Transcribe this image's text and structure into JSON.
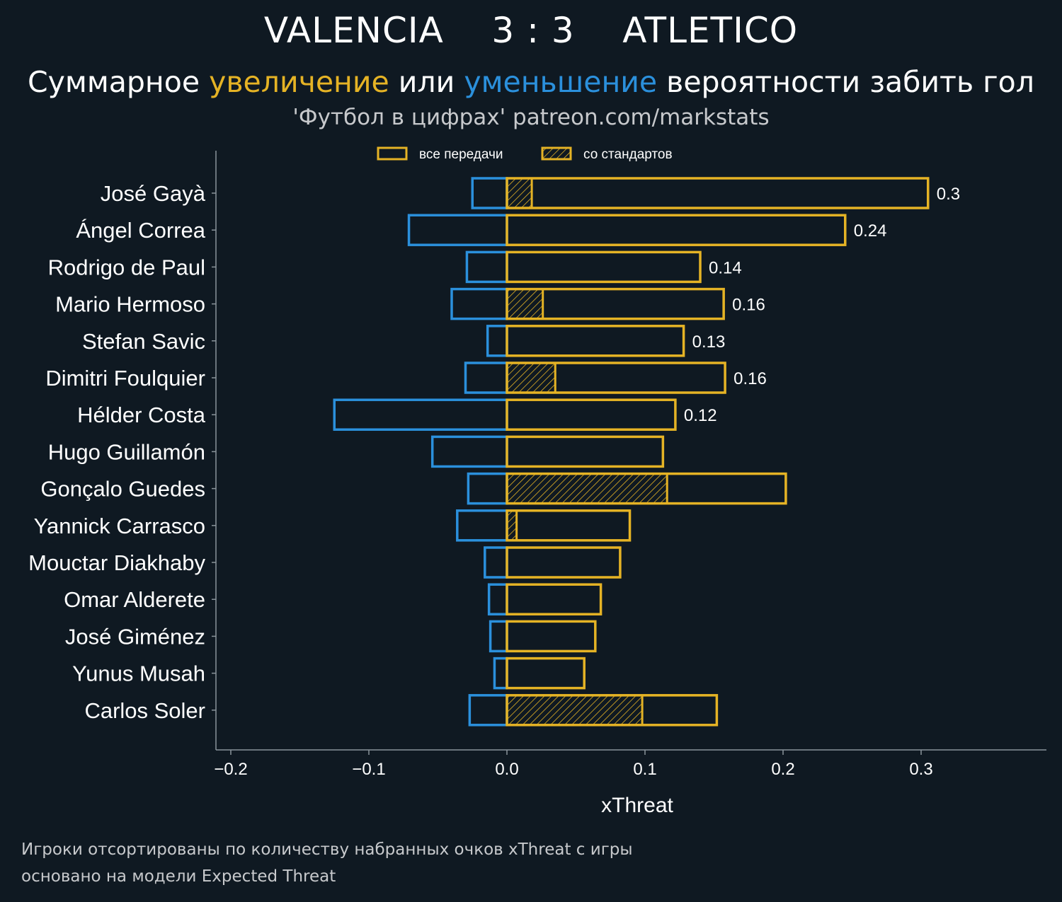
{
  "header": {
    "title": "VALENCIA    3 : 3    ATLETICO",
    "subtitle_parts": [
      "Суммарное ",
      "увеличение",
      " или ",
      "уменьшение",
      " вероятности забить гол"
    ],
    "credit": "'Футбол в цифрах' patreon.com/markstats"
  },
  "footer": {
    "note1": "Игроки отсортированы по количеству набранных очков xThreat с игры",
    "note2": "основано на модели Expected Threat"
  },
  "colors": {
    "background": "#0f1922",
    "increase": "#e5b325",
    "decrease": "#2b90dc",
    "axis": "#8a949b"
  },
  "chart_data": {
    "type": "bar",
    "orientation": "horizontal",
    "xlabel": "xThreat",
    "xlim": [
      -0.21,
      0.392
    ],
    "xticks": [
      -0.2,
      -0.1,
      0.0,
      0.1,
      0.2,
      0.3
    ],
    "xtick_labels": [
      "−0.2",
      "−0.1",
      "0.0",
      "0.1",
      "0.2",
      "0.3"
    ],
    "legend": {
      "position": "top-center",
      "entries": [
        "все передачи",
        "со стандартов"
      ]
    },
    "categories": [
      "José Gayà",
      "Ángel Correa",
      "Rodrigo de Paul",
      "Mario Hermoso",
      "Stefan Savic",
      "Dimitri Foulquier",
      "Hélder Costa",
      "Hugo Guillamón",
      "Gonçalo Guedes",
      "Yannick Carrasco",
      "Mouctar Diakhaby",
      "Omar Alderete",
      "José Giménez",
      "Yunus Musah",
      "Carlos Soler"
    ],
    "series": [
      {
        "name": "все передачи",
        "role": "increase",
        "values": [
          0.305,
          0.245,
          0.14,
          0.157,
          0.128,
          0.158,
          0.122,
          0.113,
          0.202,
          0.089,
          0.082,
          0.068,
          0.064,
          0.056,
          0.152
        ]
      },
      {
        "name": "со стандартов",
        "role": "increase-set-pieces",
        "values": [
          0.018,
          0.0,
          0.0,
          0.026,
          0.0,
          0.035,
          0.0,
          0.0,
          0.116,
          0.007,
          0.0,
          0.0,
          0.0,
          0.0,
          0.098
        ]
      },
      {
        "role": "decrease",
        "values": [
          -0.025,
          -0.071,
          -0.029,
          -0.04,
          -0.014,
          -0.03,
          -0.125,
          -0.054,
          -0.028,
          -0.036,
          -0.016,
          -0.013,
          -0.012,
          -0.009,
          -0.027
        ]
      }
    ],
    "data_labels": [
      "0.3",
      "0.24",
      "0.14",
      "0.16",
      "0.13",
      "0.16",
      "0.12",
      "",
      "",
      "",
      "",
      "",
      "",
      "",
      ""
    ]
  }
}
